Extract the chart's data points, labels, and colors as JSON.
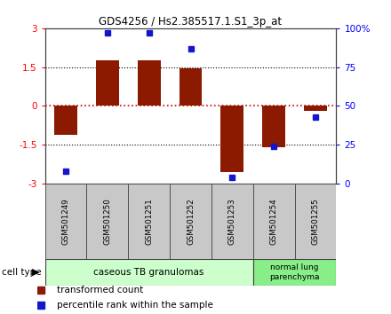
{
  "title": "GDS4256 / Hs2.385517.1.S1_3p_at",
  "samples": [
    "GSM501249",
    "GSM501250",
    "GSM501251",
    "GSM501252",
    "GSM501253",
    "GSM501254",
    "GSM501255"
  ],
  "bar_values": [
    -1.1,
    1.75,
    1.75,
    1.45,
    -2.55,
    -1.6,
    -0.2
  ],
  "dot_values_pct": [
    8,
    97,
    97,
    87,
    4,
    24,
    43
  ],
  "ylim": [
    -3,
    3
  ],
  "y_left_ticks": [
    -3,
    -1.5,
    0,
    1.5,
    3
  ],
  "y_left_labels": [
    "-3",
    "-1.5",
    "0",
    "1.5",
    "3"
  ],
  "y_right_ticks": [
    0,
    25,
    50,
    75,
    100
  ],
  "y_right_labels": [
    "0",
    "25",
    "50",
    "75",
    "100%"
  ],
  "bar_color": "#8b1a00",
  "dot_color": "#1515cc",
  "hline_color": "#cc0000",
  "cell_groups": [
    {
      "label": "caseous TB granulomas",
      "samples_count": 5,
      "color": "#ccffcc"
    },
    {
      "label": "normal lung\nparenchyma",
      "samples_count": 2,
      "color": "#88ee88"
    }
  ],
  "legend_items": [
    {
      "color": "#8b1a00",
      "label": "transformed count"
    },
    {
      "color": "#1515cc",
      "label": "percentile rank within the sample"
    }
  ],
  "cell_type_label": "cell type",
  "bar_width": 0.55,
  "sample_box_color": "#c8c8c8",
  "sample_box_edge": "#505050"
}
